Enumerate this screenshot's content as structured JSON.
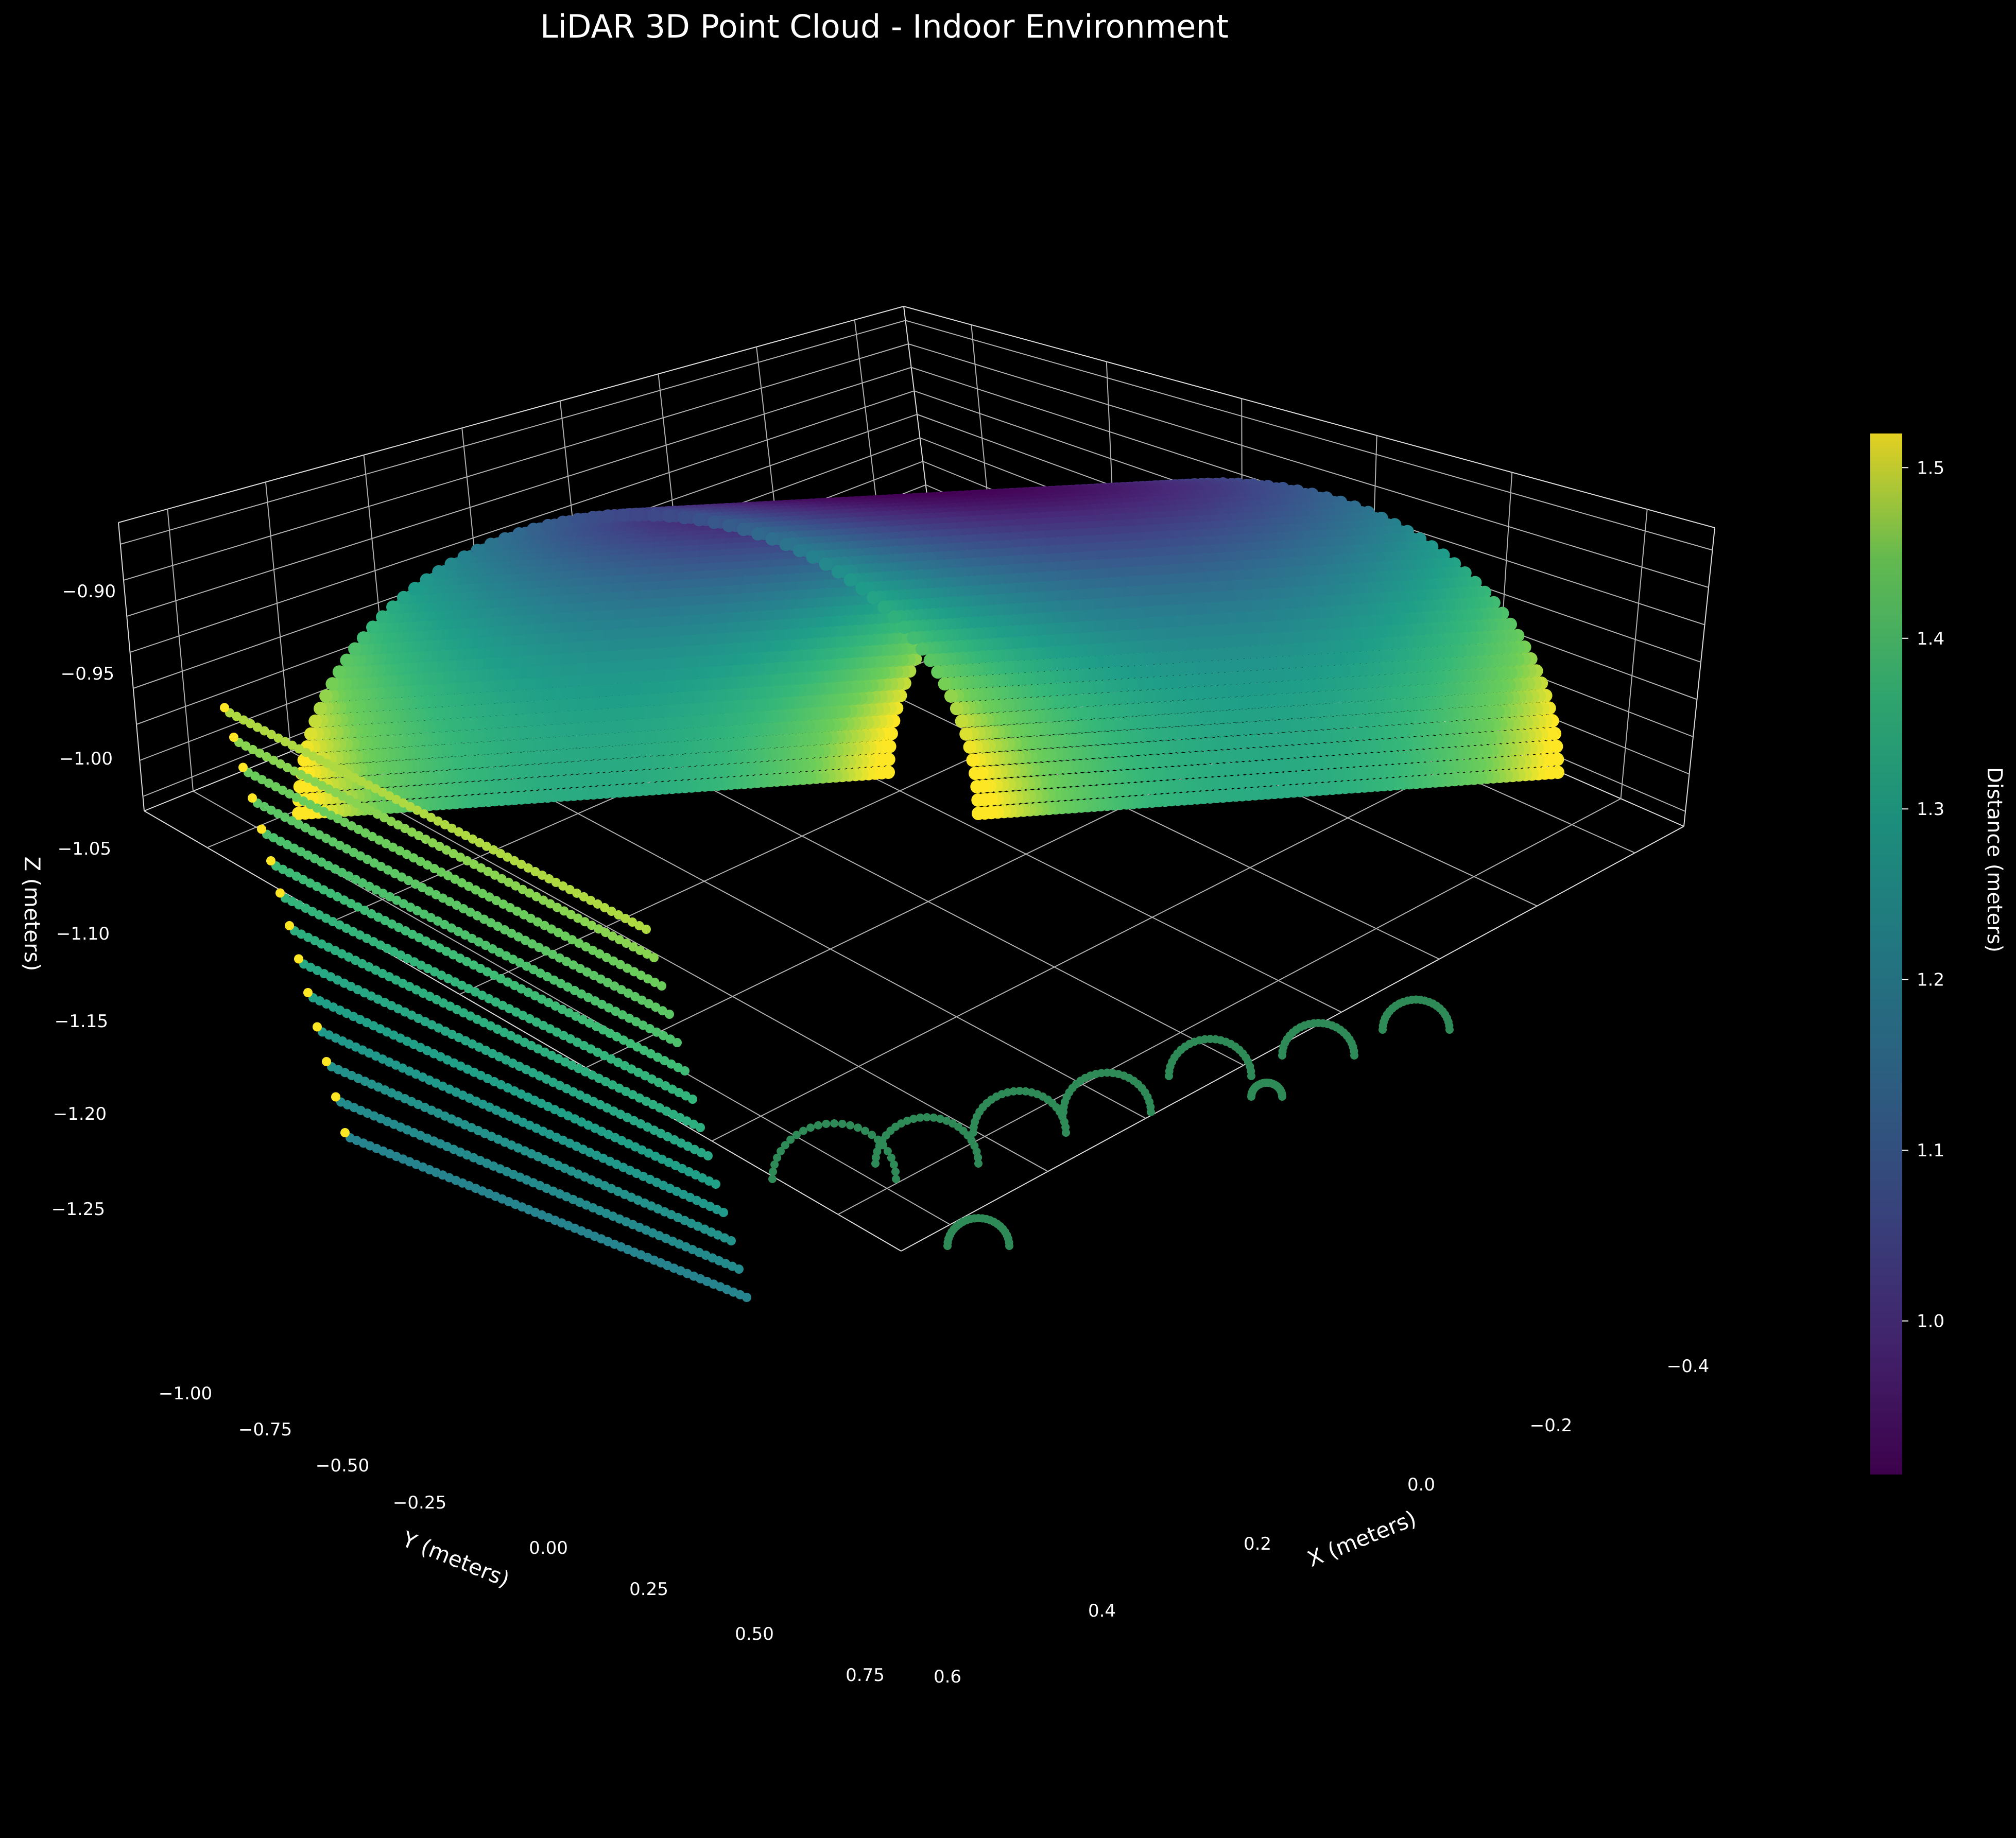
{
  "chart_data": {
    "type": "scatter",
    "title": "LiDAR 3D Point Cloud - Indoor Environment",
    "xlabel": "X (meters)",
    "ylabel": "Y (meters)",
    "zlabel": "Z (meters)",
    "x_ticks": [
      "−0.4",
      "−0.2",
      "0.0",
      "0.2",
      "0.4",
      "0.6"
    ],
    "y_ticks": [
      "−1.00",
      "−0.75",
      "−0.50",
      "−0.25",
      "0.00",
      "0.25",
      "0.50",
      "0.75"
    ],
    "z_ticks": [
      "−0.90",
      "−0.95",
      "−1.00",
      "−1.05",
      "−1.10",
      "−1.15",
      "−1.20",
      "−1.25"
    ],
    "xlim": [
      -0.45,
      0.65
    ],
    "ylim": [
      -1.05,
      0.8
    ],
    "zlim": [
      -1.27,
      -0.87
    ],
    "grid": true,
    "colorbar": {
      "label": "Distance (meters)",
      "ticks": [
        "1.0",
        "1.1",
        "1.2",
        "1.3",
        "1.4",
        "1.5"
      ],
      "range": [
        0.91,
        1.52
      ],
      "colormap": "viridis"
    },
    "description_series": "Dense point cloud forming a half-cylinder (arched ceiling) surface with parallel scan lines at the front and arc-shaped floor returns; points colored by distance from sensor."
  },
  "colors": {
    "background": "#000000",
    "pane_edge": "#ffffff",
    "grid": "#b0b0b0",
    "text": "#ffffff"
  }
}
